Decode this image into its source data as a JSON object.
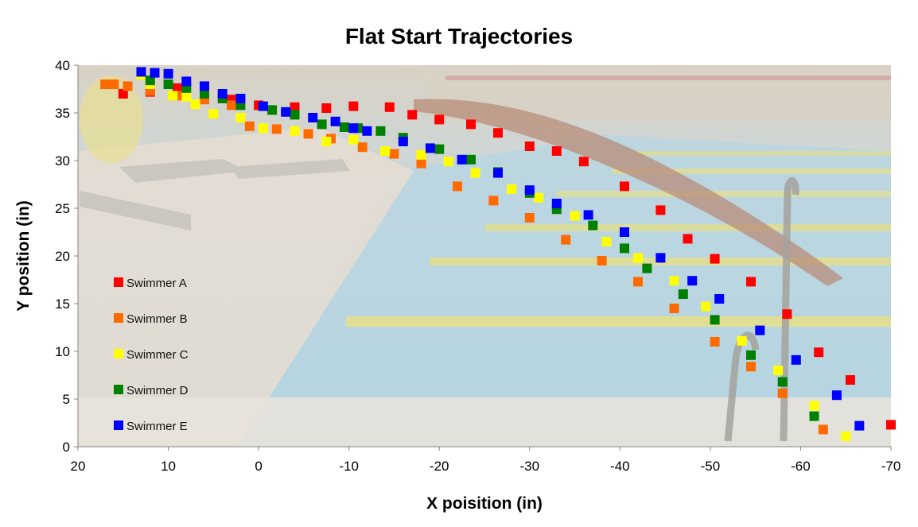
{
  "chart_data": {
    "type": "scatter",
    "title": "Flat Start Trajectories",
    "xlabel": "X poisition (in)",
    "ylabel": "Y position (in)",
    "xlim": [
      20,
      -70
    ],
    "ylim": [
      0,
      40
    ],
    "x_ticks": [
      "20",
      "10",
      "0",
      "-10",
      "-20",
      "-30",
      "-40",
      "-50",
      "-60",
      "-70"
    ],
    "y_ticks": [
      "0",
      "5",
      "10",
      "15",
      "20",
      "25",
      "30",
      "35",
      "40"
    ],
    "background": "photo of swimmer diving over pool lanes",
    "grid": false,
    "legend_position": "left-inside",
    "series": [
      {
        "name": "Swimmer A",
        "color": "#ff0000",
        "points": [
          [
            15,
            37
          ],
          [
            12,
            37.2
          ],
          [
            9,
            37.6
          ],
          [
            6,
            37.2
          ],
          [
            3,
            36.4
          ],
          [
            0,
            35.8
          ],
          [
            -4,
            35.6
          ],
          [
            -7.5,
            35.5
          ],
          [
            -10.5,
            35.7
          ],
          [
            -14.5,
            35.6
          ],
          [
            -17,
            34.8
          ],
          [
            -20,
            34.3
          ],
          [
            -23.5,
            33.8
          ],
          [
            -26.5,
            32.9
          ],
          [
            -30,
            31.5
          ],
          [
            -33,
            31
          ],
          [
            -36,
            29.9
          ],
          [
            -40.5,
            27.3
          ],
          [
            -44.5,
            24.8
          ],
          [
            -47.5,
            21.8
          ],
          [
            -50.5,
            19.7
          ],
          [
            -54.5,
            17.3
          ],
          [
            -58.5,
            13.9
          ],
          [
            -62,
            9.9
          ],
          [
            -65.5,
            7
          ],
          [
            -70,
            2.3
          ]
        ]
      },
      {
        "name": "Swimmer B",
        "color": "#ff6a00",
        "points": [
          [
            17,
            38
          ],
          [
            16,
            38
          ],
          [
            14.5,
            37.8
          ],
          [
            12,
            37.3
          ],
          [
            9,
            36.8
          ],
          [
            6,
            36.4
          ],
          [
            3,
            35.8
          ],
          [
            1,
            33.6
          ],
          [
            -2,
            33.3
          ],
          [
            -5.5,
            32.8
          ],
          [
            -8,
            32.3
          ],
          [
            -11.5,
            31.4
          ],
          [
            -15,
            30.7
          ],
          [
            -18,
            29.7
          ],
          [
            -22,
            27.3
          ],
          [
            -26,
            25.8
          ],
          [
            -30,
            24
          ],
          [
            -34,
            21.7
          ],
          [
            -38,
            19.5
          ],
          [
            -42,
            17.3
          ],
          [
            -46,
            14.5
          ],
          [
            -50.5,
            11
          ],
          [
            -54.5,
            8.4
          ],
          [
            -58,
            5.6
          ],
          [
            -62.5,
            1.8
          ]
        ]
      },
      {
        "name": "Swimmer C",
        "color": "#ffff00",
        "points": [
          [
            13,
            39
          ],
          [
            12,
            38
          ],
          [
            9.5,
            36.8
          ],
          [
            8,
            36.7
          ],
          [
            7,
            35.9
          ],
          [
            5,
            34.9
          ],
          [
            2,
            34.5
          ],
          [
            -0.5,
            33.4
          ],
          [
            -4,
            33.1
          ],
          [
            -7.5,
            32
          ],
          [
            -10.5,
            32.2
          ],
          [
            -14,
            31
          ],
          [
            -18,
            30.6
          ],
          [
            -21,
            29.9
          ],
          [
            -24,
            28.7
          ],
          [
            -28,
            27
          ],
          [
            -31,
            26.1
          ],
          [
            -35,
            24.2
          ],
          [
            -38.5,
            21.5
          ],
          [
            -42,
            19.8
          ],
          [
            -46,
            17.4
          ],
          [
            -49.5,
            14.7
          ],
          [
            -53.5,
            11.1
          ],
          [
            -57.5,
            8
          ],
          [
            -61.5,
            4.3
          ],
          [
            -65,
            1.1
          ]
        ]
      },
      {
        "name": "Swimmer D",
        "color": "#008000",
        "points": [
          [
            12,
            38.4
          ],
          [
            10,
            38
          ],
          [
            8,
            37.6
          ],
          [
            6,
            37
          ],
          [
            4,
            36.5
          ],
          [
            2,
            35.8
          ],
          [
            -1.5,
            35.3
          ],
          [
            -4,
            34.8
          ],
          [
            -7,
            33.8
          ],
          [
            -9.5,
            33.5
          ],
          [
            -11,
            33.4
          ],
          [
            -13.5,
            33.1
          ],
          [
            -16,
            32.4
          ],
          [
            -20,
            31.2
          ],
          [
            -23.5,
            30.1
          ],
          [
            -26.5,
            28.8
          ],
          [
            -30,
            26.6
          ],
          [
            -33,
            24.9
          ],
          [
            -37,
            23.2
          ],
          [
            -40.5,
            20.8
          ],
          [
            -43,
            18.7
          ],
          [
            -47,
            16
          ],
          [
            -50.5,
            13.3
          ],
          [
            -54.5,
            9.6
          ],
          [
            -58,
            6.8
          ],
          [
            -61.5,
            3.2
          ]
        ]
      },
      {
        "name": "Swimmer E",
        "color": "#0000ff",
        "points": [
          [
            13,
            39.3
          ],
          [
            11.5,
            39.2
          ],
          [
            10,
            39.1
          ],
          [
            8,
            38.3
          ],
          [
            6,
            37.8
          ],
          [
            4,
            37
          ],
          [
            2,
            36.5
          ],
          [
            -0.5,
            35.7
          ],
          [
            -3,
            35.1
          ],
          [
            -6,
            34.5
          ],
          [
            -8.5,
            34.1
          ],
          [
            -10.5,
            33.4
          ],
          [
            -12,
            33.1
          ],
          [
            -16,
            32
          ],
          [
            -19,
            31.3
          ],
          [
            -22.5,
            30.1
          ],
          [
            -26.5,
            28.7
          ],
          [
            -30,
            26.9
          ],
          [
            -33,
            25.5
          ],
          [
            -36.5,
            24.3
          ],
          [
            -40.5,
            22.5
          ],
          [
            -44.5,
            19.8
          ],
          [
            -48,
            17.4
          ],
          [
            -51,
            15.5
          ],
          [
            -55.5,
            12.2
          ],
          [
            -59.5,
            9.1
          ],
          [
            -64,
            5.4
          ],
          [
            -66.5,
            2.2
          ]
        ]
      }
    ]
  }
}
